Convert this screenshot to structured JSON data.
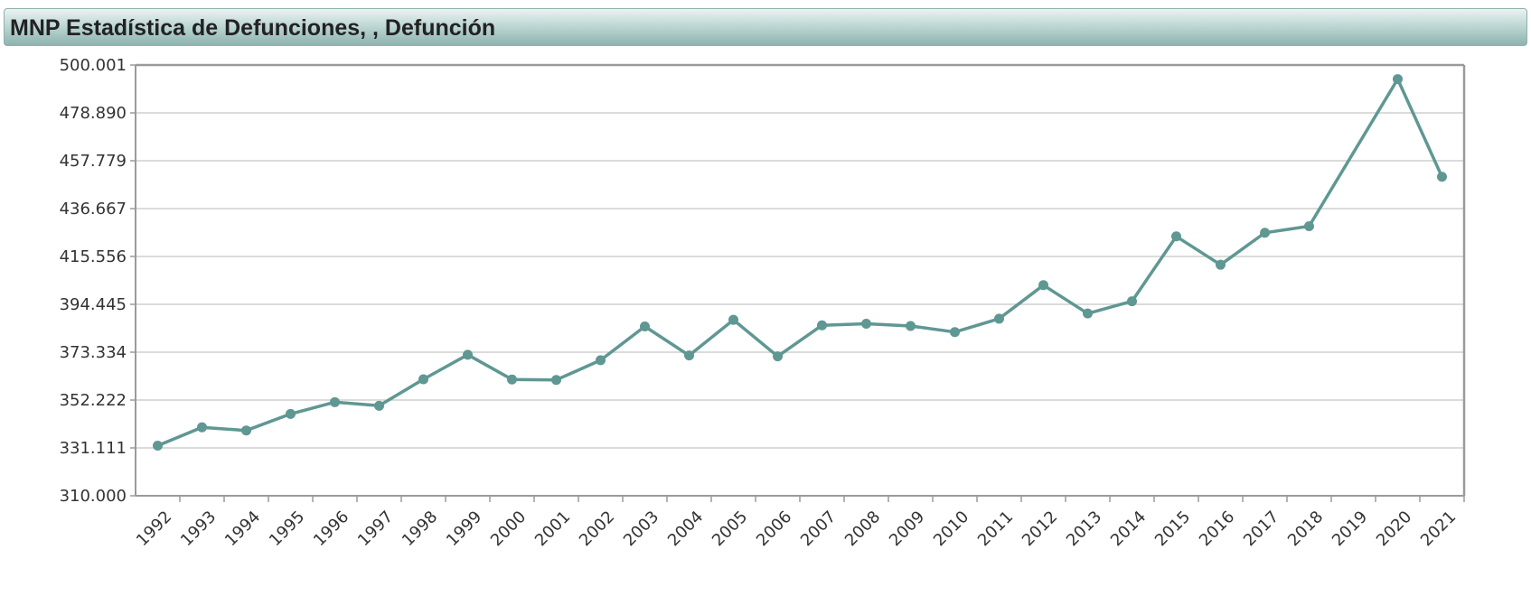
{
  "title": "MNP Estadística de Defunciones, , Defunción",
  "colors": {
    "series": "#5f9793",
    "grid": "#cfcfcf",
    "frame": "#9a9a9a"
  },
  "chart_data": {
    "type": "line",
    "title": "MNP Estadística de Defunciones, , Defunción",
    "xlabel": "",
    "ylabel": "",
    "categories": [
      "1992",
      "1993",
      "1994",
      "1995",
      "1996",
      "1997",
      "1998",
      "1999",
      "2000",
      "2001",
      "2002",
      "2003",
      "2004",
      "2005",
      "2006",
      "2007",
      "2008",
      "2009",
      "2010",
      "2011",
      "2012",
      "2013",
      "2014",
      "2015",
      "2016",
      "2017",
      "2018",
      "2019",
      "2020",
      "2021"
    ],
    "series": [
      {
        "values": [
          332100,
          340200,
          338800,
          346100,
          351300,
          349700,
          361400,
          372200,
          361300,
          361100,
          369800,
          384700,
          371900,
          387600,
          371500,
          385200,
          385900,
          384900,
          382200,
          388100,
          402900,
          390400,
          395800,
          424400,
          411900,
          426000,
          428900,
          null,
          493800,
          450700
        ]
      }
    ],
    "yticks": [
      "500.001",
      "478.890",
      "457.779",
      "436.667",
      "415.556",
      "394.445",
      "373.334",
      "352.222",
      "331.111",
      "310.000"
    ],
    "ylim": [
      310000,
      500001
    ],
    "grid": true,
    "legend": "none"
  }
}
